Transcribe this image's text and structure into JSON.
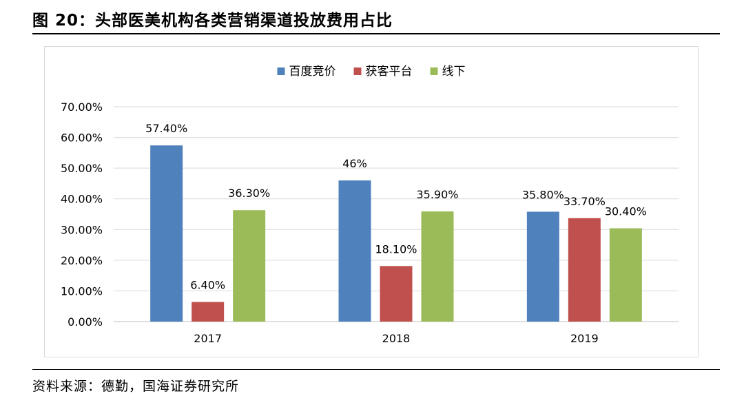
{
  "figure_title": "图 20：头部医美机构各类营销渠道投放费用占比",
  "source": "资料来源：德勤，国海证券研究所",
  "chart_data": {
    "type": "bar",
    "categories": [
      "2017",
      "2018",
      "2019"
    ],
    "series": [
      {
        "name": "百度竞价",
        "values": [
          57.4,
          46,
          35.8
        ],
        "labels": [
          "57.40%",
          "46%",
          "35.80%"
        ],
        "color": "#4f81bd"
      },
      {
        "name": "获客平台",
        "values": [
          6.4,
          18.1,
          33.7
        ],
        "labels": [
          "6.40%",
          "18.10%",
          "33.70%"
        ],
        "color": "#c0504d"
      },
      {
        "name": "线下",
        "values": [
          36.3,
          35.9,
          30.4
        ],
        "labels": [
          "36.30%",
          "35.90%",
          "30.40%"
        ],
        "color": "#9bbb59"
      }
    ],
    "ylim": [
      0,
      70
    ],
    "yticks": [
      0,
      10,
      20,
      30,
      40,
      50,
      60,
      70
    ],
    "ytick_labels": [
      "0.00%",
      "10.00%",
      "20.00%",
      "30.00%",
      "40.00%",
      "50.00%",
      "60.00%",
      "70.00%"
    ],
    "grid": true,
    "legend_position": "top-center"
  }
}
